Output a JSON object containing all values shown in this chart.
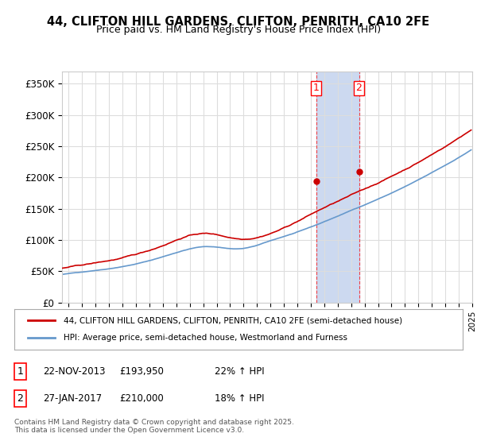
{
  "title_line1": "44, CLIFTON HILL GARDENS, CLIFTON, PENRITH, CA10 2FE",
  "title_line2": "Price paid vs. HM Land Registry's House Price Index (HPI)",
  "ylabel_ticks": [
    "£0",
    "£50K",
    "£100K",
    "£150K",
    "£200K",
    "£250K",
    "£300K",
    "£350K"
  ],
  "ytick_values": [
    0,
    50000,
    100000,
    150000,
    200000,
    250000,
    300000,
    350000
  ],
  "ylim": [
    0,
    370000
  ],
  "xlim_start": 1995.0,
  "xlim_end": 2025.5,
  "sale1_date": 2013.9,
  "sale1_price": 193950,
  "sale1_label": "1",
  "sale2_date": 2017.08,
  "sale2_price": 210000,
  "sale2_label": "2",
  "highlight_color": "#ccd9f0",
  "line1_color": "#cc0000",
  "line2_color": "#6699cc",
  "legend_label1": "44, CLIFTON HILL GARDENS, CLIFTON, PENRITH, CA10 2FE (semi-detached house)",
  "legend_label2": "HPI: Average price, semi-detached house, Westmorland and Furness",
  "table_row1": [
    "1",
    "22-NOV-2013",
    "£193,950",
    "22% ↑ HPI"
  ],
  "table_row2": [
    "2",
    "27-JAN-2017",
    "£210,000",
    "18% ↑ HPI"
  ],
  "footer": "Contains HM Land Registry data © Crown copyright and database right 2025.\nThis data is licensed under the Open Government Licence v3.0.",
  "grid_color": "#dddddd",
  "background_color": "#ffffff"
}
